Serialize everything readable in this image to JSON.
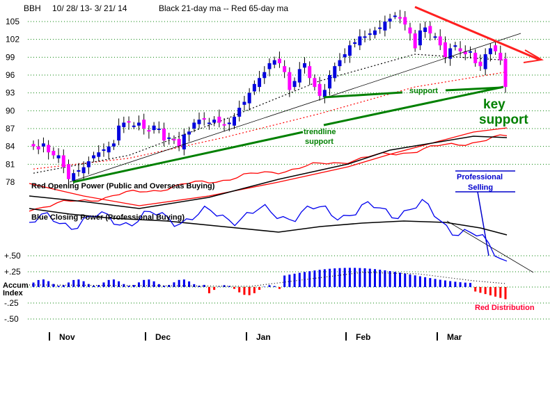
{
  "chart_data": {
    "type": "candlestick",
    "symbol": "BBH",
    "date_range": "10/ 28/ 13- 3/ 21/ 14",
    "legend": "Black 21-day ma --  Red 65-day ma",
    "y_ticks": [
      105,
      102,
      99,
      96,
      93,
      90,
      87,
      84,
      81,
      78
    ],
    "ylim": [
      78,
      106
    ],
    "x_months": [
      "Nov",
      "Dec",
      "Jan",
      "Feb",
      "Mar"
    ],
    "indicator_labels": {
      "opening_power": "Red Opening Power (Public and Overseas Buying)",
      "closing_power": "Blue Closing Power (Professional Buying)",
      "accum_index": "Accum\nIndex"
    },
    "accum_ticks": [
      "+.50",
      "+.25",
      "0",
      "-.25",
      "-.50"
    ],
    "annotations": {
      "support": "support",
      "key_support": "key\nsupport",
      "trendline_support": "trendline\nsupport",
      "professional_selling": "Professional\nSelling",
      "red_distribution": "Red Distribution"
    },
    "series": [
      {
        "name": "Black 21-day ma",
        "x": [
          0,
          20,
          40,
          60,
          80,
          99
        ],
        "values": [
          79.5,
          82.5,
          88.5,
          95.0,
          99.5,
          98.5
        ]
      },
      {
        "name": "Red 65-day ma",
        "x": [
          0,
          20,
          40,
          60,
          80,
          99
        ],
        "values": [
          80.2,
          82.0,
          85.5,
          89.5,
          94.0,
          96.5
        ]
      }
    ],
    "candles_close": [
      84.0,
      83.5,
      84.5,
      83.0,
      82.5,
      82.5,
      80.5,
      78.5,
      79.5,
      80.0,
      80.5,
      81.5,
      82.5,
      83.0,
      83.5,
      84.0,
      84.5,
      87.5,
      88.0,
      88.0,
      87.5,
      88.0,
      87.0,
      86.5,
      87.5,
      87.0,
      85.0,
      85.5,
      85.0,
      84.0,
      86.0,
      86.5,
      88.0,
      88.5,
      88.5,
      88.0,
      88.5,
      88.0,
      87.5,
      88.0,
      89.0,
      90.5,
      91.5,
      93.0,
      94.5,
      95.5,
      96.5,
      98.0,
      98.5,
      98.0,
      96.5,
      93.5,
      95.0,
      97.0,
      98.0,
      95.5,
      94.0,
      92.5,
      93.5,
      96.0,
      97.5,
      98.5,
      99.5,
      101.0,
      101.5,
      102.5,
      102.5,
      103.0,
      103.5,
      104.0,
      105.0,
      105.5,
      106.0,
      105.5,
      104.5,
      103.0,
      100.5,
      103.5,
      104.0,
      103.0,
      102.5,
      101.0,
      99.0,
      100.5,
      101.0,
      100.0,
      99.5,
      100.0,
      98.0,
      97.5,
      99.5,
      100.5,
      100.0,
      98.5,
      94.0
    ]
  }
}
